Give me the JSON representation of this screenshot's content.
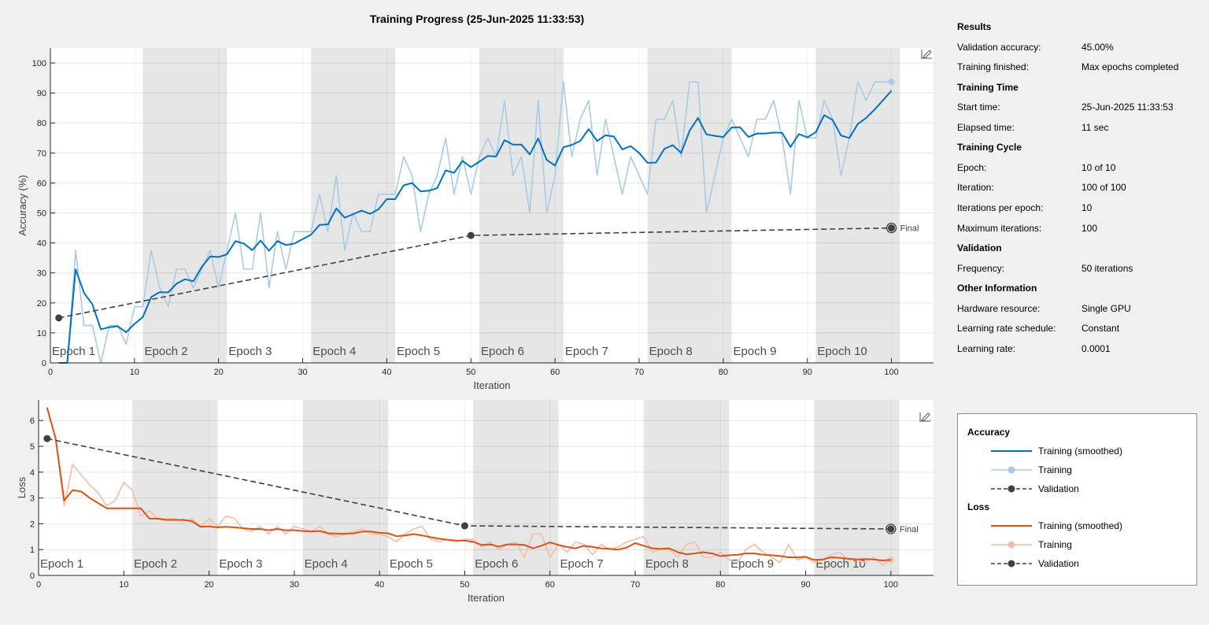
{
  "window": {
    "title": "Training Progress (25-Jun-2025 11:33:53)"
  },
  "results": {
    "sections": [
      {
        "title": "Results",
        "rows": [
          {
            "key": "Validation accuracy:",
            "value": "45.00%"
          },
          {
            "key": "Training finished:",
            "value": "Max epochs completed"
          }
        ]
      },
      {
        "title": "Training Time",
        "rows": [
          {
            "key": "Start time:",
            "value": "25-Jun-2025 11:33:53"
          },
          {
            "key": "Elapsed time:",
            "value": "11 sec"
          }
        ]
      },
      {
        "title": "Training Cycle",
        "rows": [
          {
            "key": "Epoch:",
            "value": "10 of 10"
          },
          {
            "key": "Iteration:",
            "value": "100 of 100"
          },
          {
            "key": "Iterations per epoch:",
            "value": "10"
          },
          {
            "key": "Maximum iterations:",
            "value": "100"
          }
        ]
      },
      {
        "title": "Validation",
        "rows": [
          {
            "key": "Frequency:",
            "value": "50 iterations"
          }
        ]
      },
      {
        "title": "Other Information",
        "rows": [
          {
            "key": "Hardware resource:",
            "value": "Single GPU"
          },
          {
            "key": "Learning rate schedule:",
            "value": "Constant"
          },
          {
            "key": "Learning rate:",
            "value": "0.0001"
          }
        ]
      }
    ]
  },
  "legend": {
    "groups": [
      {
        "title": "Accuracy",
        "items": [
          {
            "label": "Training (smoothed)",
            "style": "smoothed",
            "color": "#0072bd"
          },
          {
            "label": "Training",
            "style": "raw",
            "color": "#a8cbe6"
          },
          {
            "label": "Validation",
            "style": "validation",
            "color": "#404040"
          }
        ]
      },
      {
        "title": "Loss",
        "items": [
          {
            "label": "Training (smoothed)",
            "style": "smoothed",
            "color": "#d95319"
          },
          {
            "label": "Training",
            "style": "raw",
            "color": "#f2bfa5"
          },
          {
            "label": "Validation",
            "style": "validation",
            "color": "#404040"
          }
        ]
      }
    ]
  },
  "icons": {
    "edit": "pencil-axes-icon"
  },
  "chart_data": [
    {
      "type": "line",
      "ylabel": "Accuracy (%)",
      "xlabel": "Iteration",
      "xlim": [
        0,
        105
      ],
      "ylim": [
        0,
        105
      ],
      "xticks": [
        0,
        10,
        20,
        30,
        40,
        50,
        60,
        70,
        80,
        90,
        100
      ],
      "yticks": [
        0,
        10,
        20,
        30,
        40,
        50,
        60,
        70,
        80,
        90,
        100
      ],
      "grid": true,
      "epochs": [
        "Epoch 1",
        "Epoch 2",
        "Epoch 3",
        "Epoch 4",
        "Epoch 5",
        "Epoch 6",
        "Epoch 7",
        "Epoch 8",
        "Epoch 9",
        "Epoch 10"
      ],
      "iterations_per_epoch": 10,
      "final_label": "Final",
      "series": [
        {
          "name": "Training",
          "role": "raw",
          "color": "#a8cbe6",
          "values": [
            0,
            0,
            37.5,
            12.5,
            12.5,
            0,
            12.5,
            12.5,
            6.25,
            18.75,
            18.75,
            37.5,
            25,
            18.75,
            31.25,
            31.25,
            25,
            31.25,
            37.5,
            25,
            37.5,
            50,
            31.25,
            31.25,
            50,
            25,
            43.75,
            31.25,
            43.75,
            43.75,
            43.75,
            56.25,
            43.75,
            62.5,
            37.5,
            50,
            43.75,
            43.75,
            56.25,
            56.25,
            56.25,
            68.75,
            62.5,
            43.75,
            56.25,
            62.5,
            75,
            56.25,
            68.75,
            56.25,
            68.75,
            75,
            68.75,
            87.5,
            62.5,
            68.75,
            50,
            87.5,
            50,
            62.5,
            93.75,
            68.75,
            81.25,
            87.5,
            62.5,
            81.25,
            68.75,
            56.25,
            68.75,
            62.5,
            56.25,
            81.25,
            81.25,
            87.5,
            68.75,
            93.75,
            93.75,
            50,
            62.5,
            75,
            81.25,
            75,
            68.75,
            81.25,
            81.25,
            87.5,
            75,
            56.25,
            87.5,
            75,
            75,
            87.5,
            81.25,
            62.5,
            75,
            93.75,
            87.5,
            93.75,
            93.75,
            93.75
          ]
        },
        {
          "name": "Training (smoothed)",
          "role": "smoothed",
          "color": "#0072bd",
          "values": [
            0,
            0,
            31.2,
            23.4,
            19.5,
            11.2,
            11.9,
            12.2,
            10.2,
            13,
            15.3,
            22,
            23.6,
            23.5,
            26.4,
            27.9,
            27.2,
            32,
            35.5,
            35.3,
            36.2,
            40.6,
            39.8,
            37.6,
            40.8,
            37.4,
            40.6,
            39.3,
            39.8,
            41.3,
            42.8,
            46,
            46.2,
            51.5,
            48.4,
            49.6,
            50.8,
            49.7,
            51.2,
            54.6,
            54.6,
            59.2,
            60,
            57.2,
            57.4,
            58.3,
            64.2,
            63.4,
            67.3,
            65.3,
            67.1,
            69,
            68.8,
            74.3,
            72.8,
            72.8,
            69.5,
            74.9,
            67.7,
            65.8,
            71.9,
            72.7,
            74,
            78,
            74,
            75.9,
            75.5,
            71.2,
            72.3,
            70,
            66.7,
            66.8,
            71.4,
            72.6,
            70,
            77.4,
            81.7,
            76.2,
            75.7,
            75.3,
            78.5,
            78.6,
            75.3,
            76.5,
            76.5,
            76.8,
            76.7,
            72,
            76.3,
            75.2,
            76.9,
            82.6,
            81,
            75.8,
            75,
            79.7,
            81.7,
            84.5,
            87.6,
            90.8
          ]
        },
        {
          "name": "Validation",
          "role": "validation",
          "color": "#404040",
          "x": [
            1,
            50,
            100
          ],
          "values": [
            15,
            42.5,
            45
          ]
        }
      ]
    },
    {
      "type": "line",
      "ylabel": "Loss",
      "xlabel": "Iteration",
      "xlim": [
        0,
        105
      ],
      "ylim": [
        0,
        6.8
      ],
      "xticks": [
        0,
        10,
        20,
        30,
        40,
        50,
        60,
        70,
        80,
        90,
        100
      ],
      "yticks": [
        0,
        1,
        2,
        3,
        4,
        5,
        6
      ],
      "grid": true,
      "epochs": [
        "Epoch 1",
        "Epoch 2",
        "Epoch 3",
        "Epoch 4",
        "Epoch 5",
        "Epoch 6",
        "Epoch 7",
        "Epoch 8",
        "Epoch 9",
        "Epoch 10"
      ],
      "iterations_per_epoch": 10,
      "final_label": "Final",
      "series": [
        {
          "name": "Training",
          "role": "raw",
          "color": "#f2bfa5",
          "values": [
            6.5,
            5.3,
            2.7,
            4.3,
            3.9,
            3.5,
            3.2,
            2.7,
            2.9,
            3.6,
            3.3,
            2.3,
            2.5,
            2.2,
            2.2,
            2.2,
            2.1,
            2.2,
            1.9,
            2.2,
            1.9,
            2.3,
            2.2,
            1.8,
            1.7,
            1.9,
            1.6,
            1.9,
            1.6,
            1.9,
            1.8,
            1.7,
            1.9,
            1.6,
            1.5,
            1.6,
            1.7,
            1.8,
            1.6,
            1.6,
            1.5,
            1.3,
            1.6,
            1.8,
            1.9,
            1.4,
            1.3,
            1.4,
            1.3,
            1.4,
            1.4,
            1.1,
            1.3,
            1,
            1.2,
            1.3,
            0.7,
            1.6,
            1.6,
            0.7,
            1.2,
            0.9,
            1.3,
            1.2,
            0.8,
            1.2,
            1,
            1.1,
            1.3,
            1.4,
            1.5,
            0.9,
            1,
            1,
            0.7,
            1.2,
            1.3,
            0.7,
            0.7,
            0.9,
            0.6,
            0.5,
            1,
            1.2,
            0.9,
            0.7,
            0.5,
            1.2,
            0.6,
            0.7,
            0.5,
            0.6,
            0.8,
            0.9,
            0.6,
            0.6,
            0.5,
            0.7,
            0.4,
            0.6
          ]
        },
        {
          "name": "Training (smoothed)",
          "role": "smoothed",
          "color": "#d95319",
          "values": [
            6.5,
            5.3,
            2.9,
            3.3,
            3.25,
            3,
            2.8,
            2.6,
            2.6,
            2.6,
            2.6,
            2.6,
            2.2,
            2.2,
            2.15,
            2.15,
            2.15,
            2.1,
            1.88,
            1.9,
            1.86,
            1.88,
            1.86,
            1.83,
            1.8,
            1.8,
            1.75,
            1.8,
            1.75,
            1.75,
            1.72,
            1.7,
            1.72,
            1.63,
            1.62,
            1.62,
            1.63,
            1.7,
            1.7,
            1.65,
            1.63,
            1.52,
            1.55,
            1.6,
            1.55,
            1.48,
            1.42,
            1.38,
            1.35,
            1.35,
            1.3,
            1.18,
            1.2,
            1.12,
            1.2,
            1.2,
            1.18,
            1.05,
            1.15,
            1.28,
            1.18,
            1.1,
            1.05,
            1.15,
            1.1,
            1.05,
            1.03,
            1,
            1.08,
            1.25,
            1.15,
            1.05,
            1.03,
            1.05,
            0.9,
            0.82,
            0.85,
            0.9,
            0.85,
            0.75,
            0.78,
            0.8,
            0.85,
            0.85,
            0.8,
            0.78,
            0.75,
            0.7,
            0.7,
            0.72,
            0.6,
            0.62,
            0.7,
            0.68,
            0.65,
            0.62,
            0.63,
            0.62,
            0.58,
            0.6
          ]
        },
        {
          "name": "Validation",
          "role": "validation",
          "color": "#404040",
          "x": [
            1,
            50,
            100
          ],
          "values": [
            5.3,
            1.92,
            1.8
          ]
        }
      ]
    }
  ]
}
